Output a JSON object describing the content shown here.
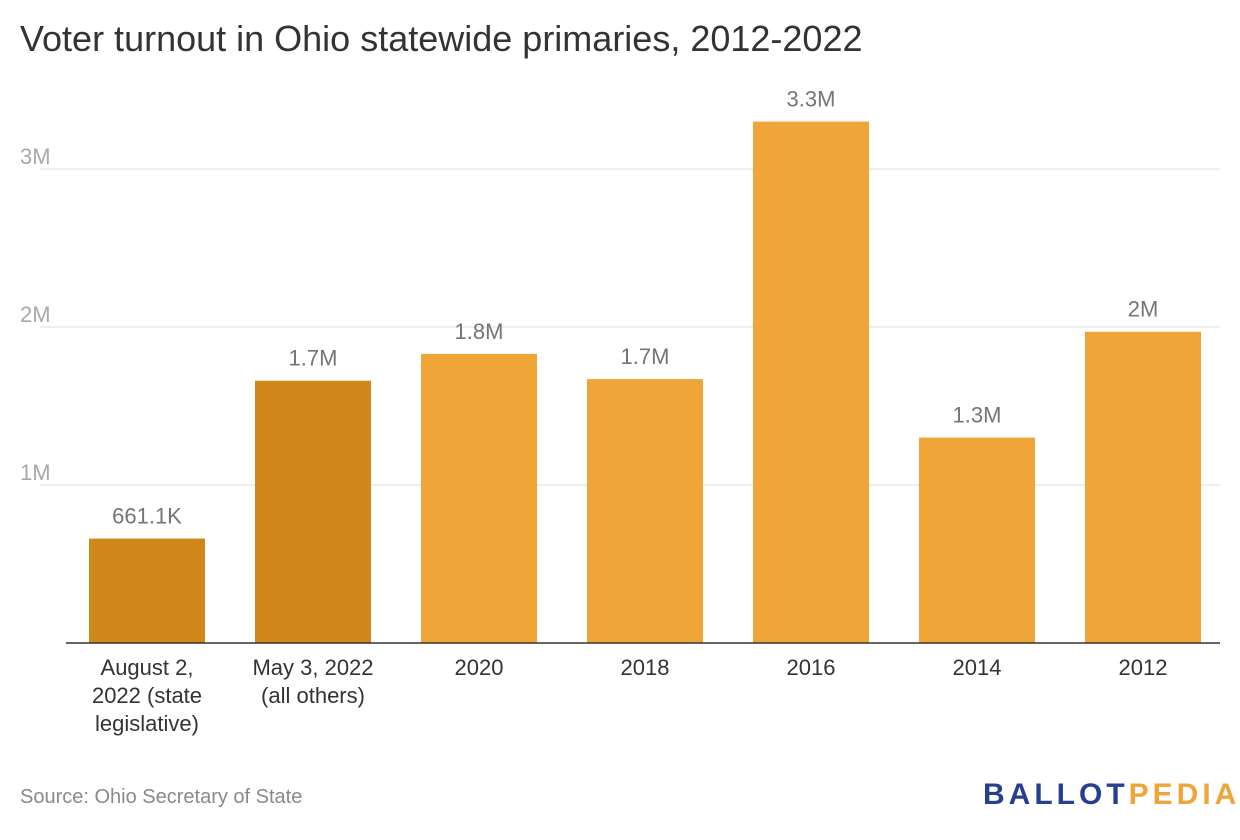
{
  "chart_data": {
    "type": "bar",
    "title": "Voter turnout in Ohio statewide primaries, 2012-2022",
    "categories": [
      [
        "August 2,",
        "2022 (state",
        "legislative)"
      ],
      [
        "May 3, 2022",
        "(all others)"
      ],
      [
        "2020"
      ],
      [
        "2018"
      ],
      [
        "2016"
      ],
      [
        "2014"
      ],
      [
        "2012"
      ]
    ],
    "values": [
      661100,
      1660000,
      1830000,
      1670000,
      3300000,
      1300000,
      1970000
    ],
    "value_labels": [
      "661.1K",
      "1.7M",
      "1.8M",
      "1.7M",
      "3.3M",
      "1.3M",
      "2M"
    ],
    "bar_colors": [
      "#d1881b",
      "#d1881b",
      "#efa537",
      "#efa537",
      "#efa537",
      "#efa537",
      "#efa537"
    ],
    "yticks": [
      1000000,
      2000000,
      3000000
    ],
    "ytick_labels": [
      "1M",
      "2M",
      "3M"
    ],
    "ylim": [
      0,
      3600000
    ],
    "xlabel": "",
    "ylabel": "",
    "grid": true
  },
  "source": "Source: Ohio Secretary of State",
  "brand": {
    "part1": "BALLOT",
    "part2": "PEDIA"
  }
}
